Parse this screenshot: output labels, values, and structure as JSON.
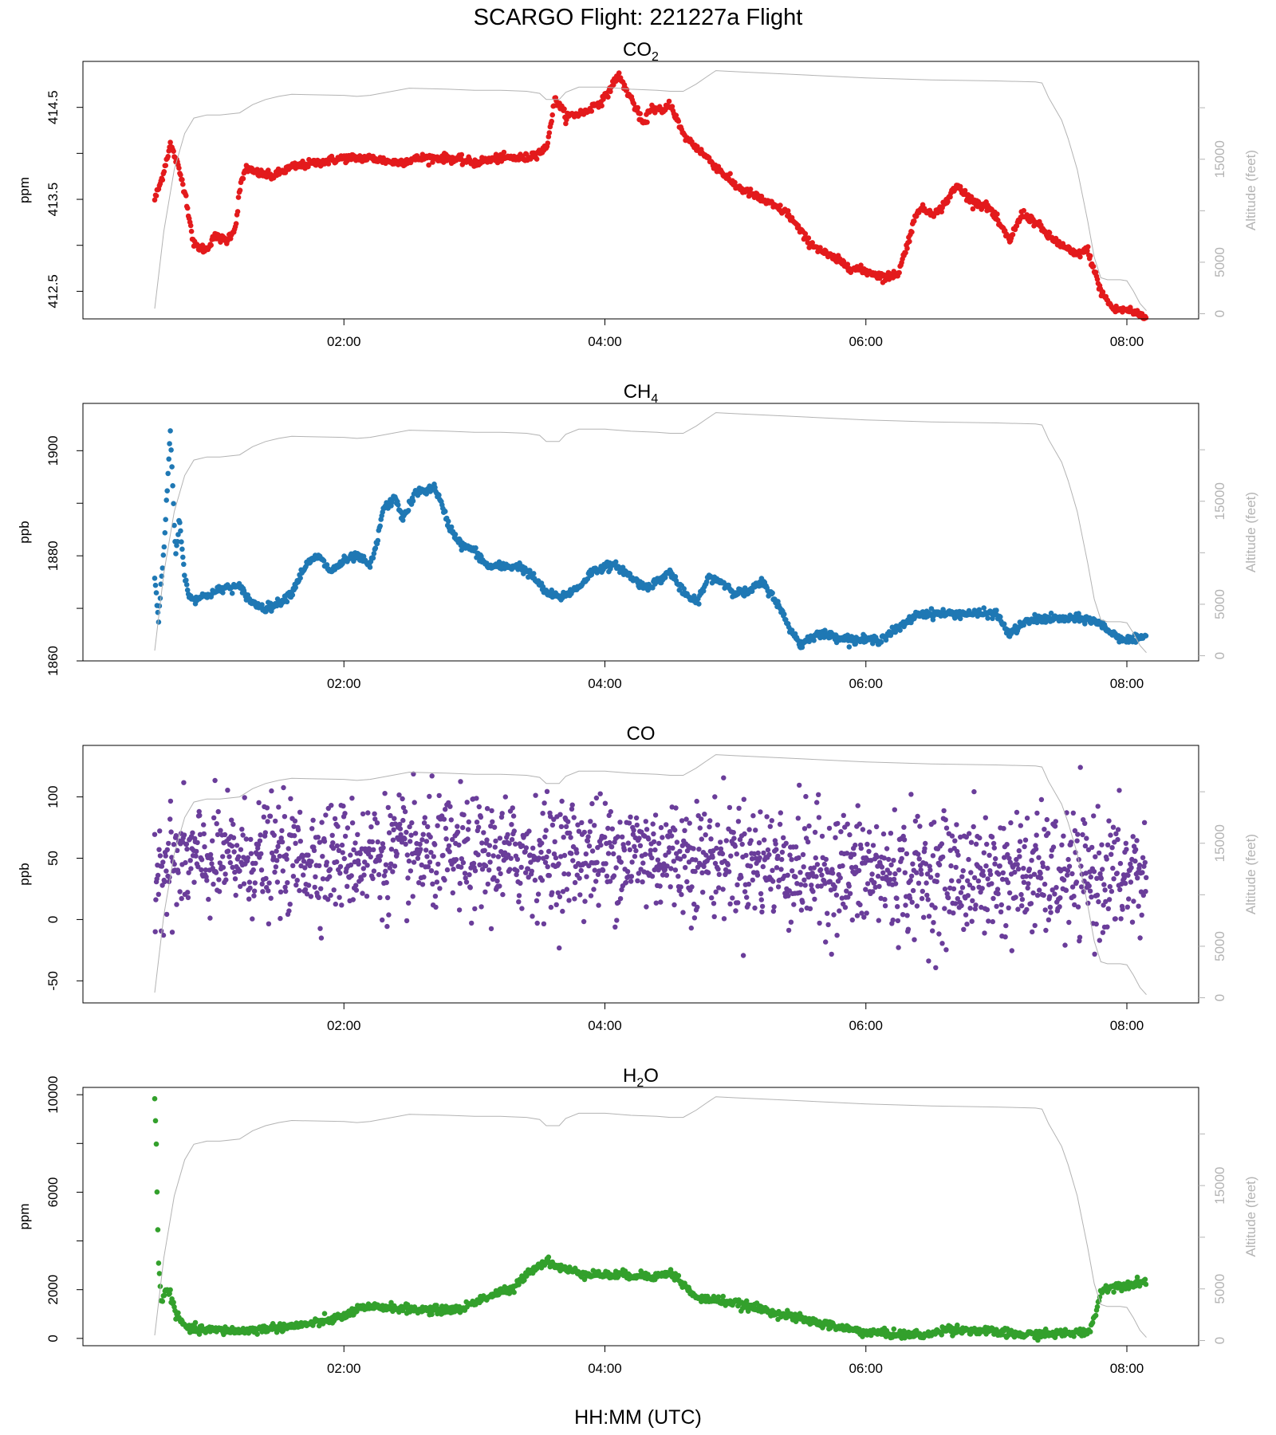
{
  "figure": {
    "title": "SCARGO Flight: 221227a  Flight",
    "xlabel": "HH:MM (UTC)",
    "altitude_axis_label": "Altitude (feet)"
  },
  "chart_data": [
    {
      "type": "scatter",
      "title_main": "CO",
      "title_sub": "2",
      "ylabel": "ppm",
      "color": "#e31a1c",
      "ylim": [
        412.2,
        415.0
      ],
      "yticks": [
        412.5,
        413.0,
        413.5,
        414.0,
        414.5
      ],
      "yticklabels": [
        "412.5",
        "",
        "413.5",
        "",
        "414.5"
      ],
      "xlim_hours": [
        0.0,
        8.55
      ],
      "xticks": [
        "02:00",
        "04:00",
        "06:00",
        "08:00"
      ],
      "xtick_hours": [
        2,
        4,
        6,
        8
      ],
      "alt_ticks": [
        "0",
        "5000",
        "15000"
      ],
      "alt_tick_values": [
        0,
        5000,
        10000,
        15000,
        20000
      ],
      "alt_ylim": [
        -500,
        24500
      ],
      "series": [
        {
          "x": [
            0.55,
            0.6,
            0.67,
            0.72,
            0.78,
            0.85,
            0.95,
            1.0,
            1.1,
            1.17,
            1.2,
            1.25,
            1.3,
            1.45,
            1.6,
            1.8,
            2.0,
            2.2,
            2.4,
            2.6,
            2.8,
            3.0,
            3.2,
            3.4,
            3.55,
            3.62,
            3.7,
            3.85,
            4.0,
            4.1,
            4.2,
            4.3,
            4.35,
            4.45,
            4.5,
            4.6,
            4.75,
            5.0,
            5.2,
            5.4,
            5.55,
            5.7,
            5.9,
            6.05,
            6.15,
            6.25,
            6.4,
            6.55,
            6.7,
            6.8,
            6.95,
            7.1,
            7.2,
            7.3,
            7.4,
            7.5,
            7.6,
            7.7,
            7.8,
            7.9,
            8.0,
            8.1,
            8.15
          ],
          "y": [
            413.5,
            413.7,
            414.1,
            413.9,
            413.6,
            413.0,
            412.95,
            413.1,
            413.05,
            413.2,
            413.6,
            413.85,
            413.8,
            413.75,
            413.85,
            413.9,
            413.95,
            413.95,
            413.9,
            413.95,
            413.95,
            413.9,
            413.95,
            413.95,
            414.05,
            414.6,
            414.4,
            414.45,
            414.6,
            414.85,
            414.6,
            414.3,
            414.5,
            414.45,
            414.55,
            414.2,
            414.0,
            413.65,
            413.5,
            413.35,
            413.05,
            412.9,
            412.75,
            412.7,
            412.65,
            412.7,
            413.4,
            413.35,
            413.65,
            413.5,
            413.4,
            413.05,
            413.35,
            413.25,
            413.1,
            413.0,
            412.9,
            412.95,
            412.5,
            412.3,
            412.3,
            412.25,
            412.2
          ]
        }
      ]
    },
    {
      "type": "scatter",
      "title_main": "CH",
      "title_sub": "4",
      "ylabel": "ppb",
      "color": "#1f78b4",
      "ylim": [
        1860,
        1909
      ],
      "yticks": [
        1860,
        1870,
        1880,
        1890,
        1900
      ],
      "yticklabels": [
        "1860",
        "",
        "1880",
        "",
        "1900"
      ],
      "xlim_hours": [
        0.0,
        8.55
      ],
      "xticks": [
        "02:00",
        "04:00",
        "06:00",
        "08:00"
      ],
      "xtick_hours": [
        2,
        4,
        6,
        8
      ],
      "alt_ticks": [
        "0",
        "5000",
        "15000"
      ],
      "alt_tick_values": [
        0,
        5000,
        10000,
        15000,
        20000
      ],
      "alt_ylim": [
        -500,
        24500
      ],
      "series": [
        {
          "x": [
            0.55,
            0.58,
            0.63,
            0.67,
            0.71,
            0.74,
            0.78,
            0.82,
            0.9,
            1.0,
            1.1,
            1.2,
            1.3,
            1.4,
            1.5,
            1.6,
            1.7,
            1.8,
            1.9,
            2.0,
            2.1,
            2.2,
            2.25,
            2.3,
            2.4,
            2.45,
            2.55,
            2.7,
            2.8,
            2.9,
            3.0,
            3.1,
            3.2,
            3.35,
            3.45,
            3.55,
            3.65,
            3.8,
            3.9,
            4.0,
            4.1,
            4.2,
            4.3,
            4.4,
            4.5,
            4.6,
            4.7,
            4.8,
            4.9,
            5.0,
            5.1,
            5.2,
            5.3,
            5.4,
            5.5,
            5.6,
            5.7,
            5.9,
            6.1,
            6.3,
            6.4,
            6.55,
            6.7,
            6.9,
            7.0,
            7.1,
            7.2,
            7.3,
            7.5,
            7.7,
            7.8,
            7.9,
            8.0,
            8.1,
            8.15
          ],
          "y": [
            1876,
            1868,
            1885,
            1904,
            1880,
            1887,
            1876,
            1872,
            1872,
            1873,
            1874,
            1874,
            1871,
            1870,
            1871,
            1873,
            1878,
            1880,
            1877,
            1879,
            1880,
            1878,
            1882,
            1889,
            1891,
            1887,
            1892,
            1893,
            1886,
            1882,
            1881,
            1878,
            1878,
            1878,
            1876,
            1873,
            1872,
            1874,
            1877,
            1878,
            1878,
            1876,
            1874,
            1875,
            1877,
            1873,
            1871,
            1876,
            1875,
            1873,
            1873,
            1875,
            1872,
            1867,
            1863,
            1865,
            1865,
            1864,
            1864,
            1867,
            1869,
            1869,
            1869,
            1869,
            1869,
            1865,
            1867,
            1868,
            1868,
            1868,
            1867,
            1865,
            1864,
            1864,
            1865
          ]
        }
      ]
    },
    {
      "type": "scatter",
      "title_main": "CO",
      "title_sub": "",
      "ylabel": "ppb",
      "color": "#6a3d9a",
      "ylim": [
        -68,
        142
      ],
      "yticks": [
        -50,
        0,
        50,
        100
      ],
      "yticklabels": [
        "-50",
        "0",
        "50",
        "100"
      ],
      "xlim_hours": [
        0.0,
        8.55
      ],
      "xticks": [
        "02:00",
        "04:00",
        "06:00",
        "08:00"
      ],
      "xtick_hours": [
        2,
        4,
        6,
        8
      ],
      "alt_ticks": [
        "0",
        "5000",
        "15000"
      ],
      "alt_tick_values": [
        0,
        5000,
        10000,
        15000,
        20000
      ],
      "alt_ylim": [
        -500,
        24500
      ],
      "series": [
        {
          "x": [
            0.6,
            0.8,
            1.0,
            1.3,
            1.6,
            2.0,
            2.3,
            2.6,
            3.0,
            3.3,
            3.6,
            4.0,
            4.3,
            4.6,
            5.0,
            5.3,
            5.6,
            6.0,
            6.4,
            6.8,
            7.2,
            7.6,
            8.0
          ],
          "y": [
            45,
            48,
            48,
            50,
            50,
            52,
            53,
            53,
            52,
            52,
            53,
            54,
            54,
            52,
            50,
            46,
            40,
            38,
            36,
            36,
            36,
            35,
            35
          ],
          "spread": [
            22,
            22,
            22,
            22,
            22,
            22,
            23,
            23,
            23,
            23,
            23,
            23,
            23,
            23,
            23,
            24,
            25,
            25,
            25,
            25,
            25,
            25,
            25
          ]
        }
      ]
    },
    {
      "type": "scatter",
      "title_main": "H",
      "title_sub": "2",
      "title_after": "O",
      "ylabel": "ppm",
      "color": "#33a02c",
      "ylim": [
        -300,
        10300
      ],
      "yticks": [
        0,
        2000,
        4000,
        6000,
        8000,
        10000
      ],
      "yticklabels": [
        "0",
        "2000",
        "",
        "6000",
        "",
        "10000"
      ],
      "xlim_hours": [
        0.0,
        8.55
      ],
      "xticks": [
        "02:00",
        "04:00",
        "06:00",
        "08:00"
      ],
      "xtick_hours": [
        2,
        4,
        6,
        8
      ],
      "alt_ticks": [
        "0",
        "5000",
        "15000"
      ],
      "alt_tick_values": [
        0,
        5000,
        10000,
        15000,
        20000
      ],
      "alt_ylim": [
        -500,
        24500
      ],
      "series": [
        {
          "x": [
            0.55,
            0.56,
            0.57,
            0.58,
            0.6,
            0.63,
            0.67,
            0.72,
            0.8,
            0.9,
            1.0,
            1.2,
            1.4,
            1.6,
            1.8,
            2.0,
            2.1,
            2.3,
            2.5,
            2.7,
            2.9,
            3.0,
            3.2,
            3.3,
            3.4,
            3.5,
            3.55,
            3.65,
            3.8,
            4.0,
            4.2,
            4.4,
            4.5,
            4.55,
            4.7,
            4.9,
            5.2,
            5.5,
            5.8,
            6.0,
            6.3,
            6.5,
            6.6,
            6.9,
            7.2,
            7.5,
            7.7,
            7.75,
            7.8,
            7.85,
            8.0,
            8.1,
            8.15
          ],
          "y": [
            9800,
            8500,
            5500,
            3000,
            1500,
            2000,
            1800,
            900,
            400,
            350,
            350,
            300,
            400,
            500,
            650,
            900,
            1200,
            1300,
            1200,
            1150,
            1200,
            1500,
            1900,
            2000,
            2700,
            3000,
            3200,
            2900,
            2700,
            2600,
            2600,
            2550,
            2700,
            2500,
            1650,
            1550,
            1200,
            800,
            450,
            250,
            150,
            150,
            400,
            300,
            150,
            200,
            250,
            800,
            1900,
            2100,
            2200,
            2300,
            2350
          ]
        }
      ]
    }
  ],
  "altitude_profile": {
    "x": [
      0.55,
      0.62,
      0.7,
      0.78,
      0.85,
      0.95,
      1.0,
      1.05,
      1.2,
      1.3,
      1.4,
      1.5,
      1.6,
      2.0,
      2.1,
      2.2,
      2.5,
      2.8,
      3.0,
      3.2,
      3.4,
      3.5,
      3.55,
      3.65,
      3.7,
      3.8,
      4.0,
      4.2,
      4.4,
      4.5,
      4.6,
      4.7,
      4.78,
      4.85,
      5.0,
      5.5,
      6.0,
      6.5,
      7.0,
      7.3,
      7.35,
      7.4,
      7.5,
      7.55,
      7.62,
      7.7,
      7.75,
      7.8,
      7.85,
      7.95,
      8.0,
      8.05,
      8.1,
      8.15
    ],
    "y": [
      500,
      8000,
      14000,
      17500,
      19000,
      19300,
      19300,
      19300,
      19500,
      20300,
      20800,
      21100,
      21300,
      21200,
      21100,
      21200,
      21900,
      21800,
      21700,
      21700,
      21600,
      21400,
      20800,
      20800,
      21500,
      22000,
      22000,
      21800,
      21700,
      21600,
      21600,
      22300,
      23000,
      23600,
      23500,
      23200,
      22900,
      22700,
      22600,
      22500,
      22400,
      21000,
      18800,
      17000,
      14000,
      9000,
      5500,
      3500,
      3300,
      3300,
      3200,
      2200,
      1000,
      300
    ]
  }
}
